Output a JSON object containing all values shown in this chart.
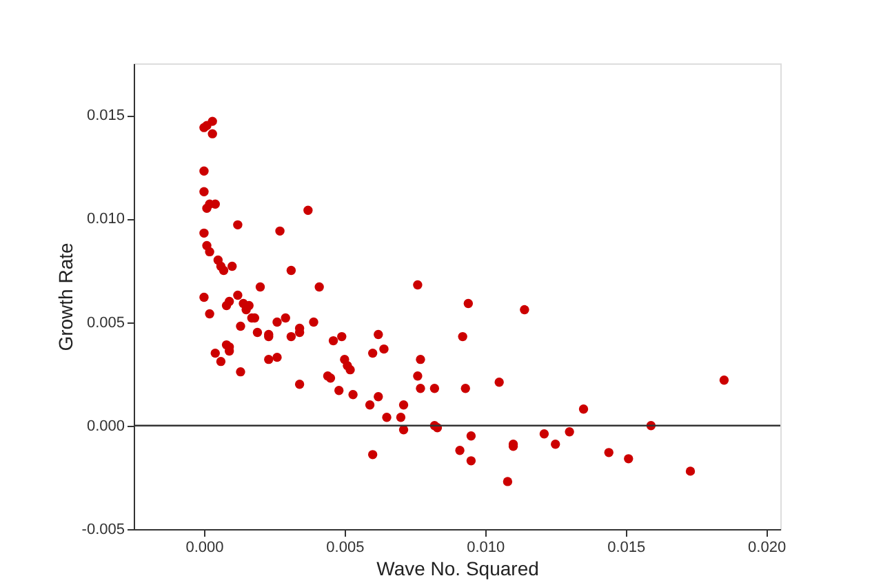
{
  "chart_data": {
    "type": "scatter",
    "xlabel": "Wave No. Squared",
    "ylabel": "Growth Rate",
    "xlim": [
      -0.0025,
      0.0205
    ],
    "ylim": [
      -0.005,
      0.0175
    ],
    "xticks": [
      {
        "value": 0,
        "label": "0.000"
      },
      {
        "value": 0.005,
        "label": "0.005"
      },
      {
        "value": 0.01,
        "label": "0.010"
      },
      {
        "value": 0.015,
        "label": "0.015"
      },
      {
        "value": 0.02,
        "label": "0.020"
      }
    ],
    "yticks": [
      {
        "value": -0.005,
        "label": "-0.005"
      },
      {
        "value": 0,
        "label": "0.000"
      },
      {
        "value": 0.005,
        "label": "0.005"
      },
      {
        "value": 0.01,
        "label": "0.010"
      },
      {
        "value": 0.015,
        "label": "0.015"
      }
    ],
    "grid": false,
    "marker": "circle",
    "ref_lines": [
      {
        "axis": "y",
        "value": 0,
        "color": "#333333"
      }
    ],
    "series": [
      {
        "color": "#cc0000",
        "x": [
          0.0,
          0.0001,
          0.0003,
          0.0003,
          0.0,
          0.0,
          0.0001,
          0.0002,
          0.0004,
          0.0012,
          0.0027,
          0.0037,
          0.0,
          0.0001,
          0.0002,
          0.0005,
          0.0006,
          0.0007,
          0.001,
          0.0031,
          0.0,
          0.0002,
          0.0012,
          0.002,
          0.0041,
          0.0076,
          0.0094,
          0.0114,
          0.0008,
          0.0009,
          0.0014,
          0.0015,
          0.0016,
          0.0017,
          0.0018,
          0.0013,
          0.0019,
          0.0023,
          0.0023,
          0.0026,
          0.0029,
          0.0031,
          0.0034,
          0.0034,
          0.0039,
          0.0004,
          0.0006,
          0.0008,
          0.0009,
          0.0009,
          0.0013,
          0.0023,
          0.0026,
          0.0034,
          0.0044,
          0.0045,
          0.0046,
          0.0049,
          0.005,
          0.0051,
          0.0052,
          0.0048,
          0.0053,
          0.0059,
          0.006,
          0.0062,
          0.0064,
          0.0062,
          0.006,
          0.0065,
          0.007,
          0.0071,
          0.0071,
          0.0076,
          0.0077,
          0.0077,
          0.0082,
          0.0082,
          0.0083,
          0.0092,
          0.0093,
          0.0091,
          0.0095,
          0.0095,
          0.0105,
          0.0108,
          0.011,
          0.011,
          0.0121,
          0.0125,
          0.013,
          0.0135,
          0.0144,
          0.0151,
          0.0159,
          0.0173,
          0.0185
        ],
        "values": [
          0.0144,
          0.0145,
          0.0147,
          0.0141,
          0.0123,
          0.0113,
          0.0105,
          0.0107,
          0.0107,
          0.0097,
          0.0094,
          0.0104,
          0.0093,
          0.0087,
          0.0084,
          0.008,
          0.0077,
          0.0075,
          0.0077,
          0.0075,
          0.0062,
          0.0054,
          0.0063,
          0.0067,
          0.0067,
          0.0068,
          0.0059,
          0.0056,
          0.0058,
          0.006,
          0.0059,
          0.0056,
          0.0058,
          0.0052,
          0.0052,
          0.0048,
          0.0045,
          0.0044,
          0.0043,
          0.005,
          0.0052,
          0.0043,
          0.0045,
          0.0047,
          0.005,
          0.0035,
          0.0031,
          0.0039,
          0.0038,
          0.0036,
          0.0026,
          0.0032,
          0.0033,
          0.002,
          0.0024,
          0.0023,
          0.0041,
          0.0043,
          0.0032,
          0.0029,
          0.0027,
          0.0017,
          0.0015,
          0.001,
          0.0035,
          0.0044,
          0.0037,
          0.0014,
          -0.0014,
          0.0004,
          0.0004,
          -0.0002,
          0.001,
          0.0024,
          0.0018,
          0.0032,
          0.0018,
          0.0,
          -0.0001,
          0.0043,
          0.0018,
          -0.0012,
          -0.0005,
          -0.0017,
          0.0021,
          -0.0027,
          -0.001,
          -0.0009,
          -0.0004,
          -0.0009,
          -0.0003,
          0.0008,
          -0.0013,
          -0.0016,
          0.0,
          -0.0022,
          0.0022
        ]
      }
    ]
  }
}
